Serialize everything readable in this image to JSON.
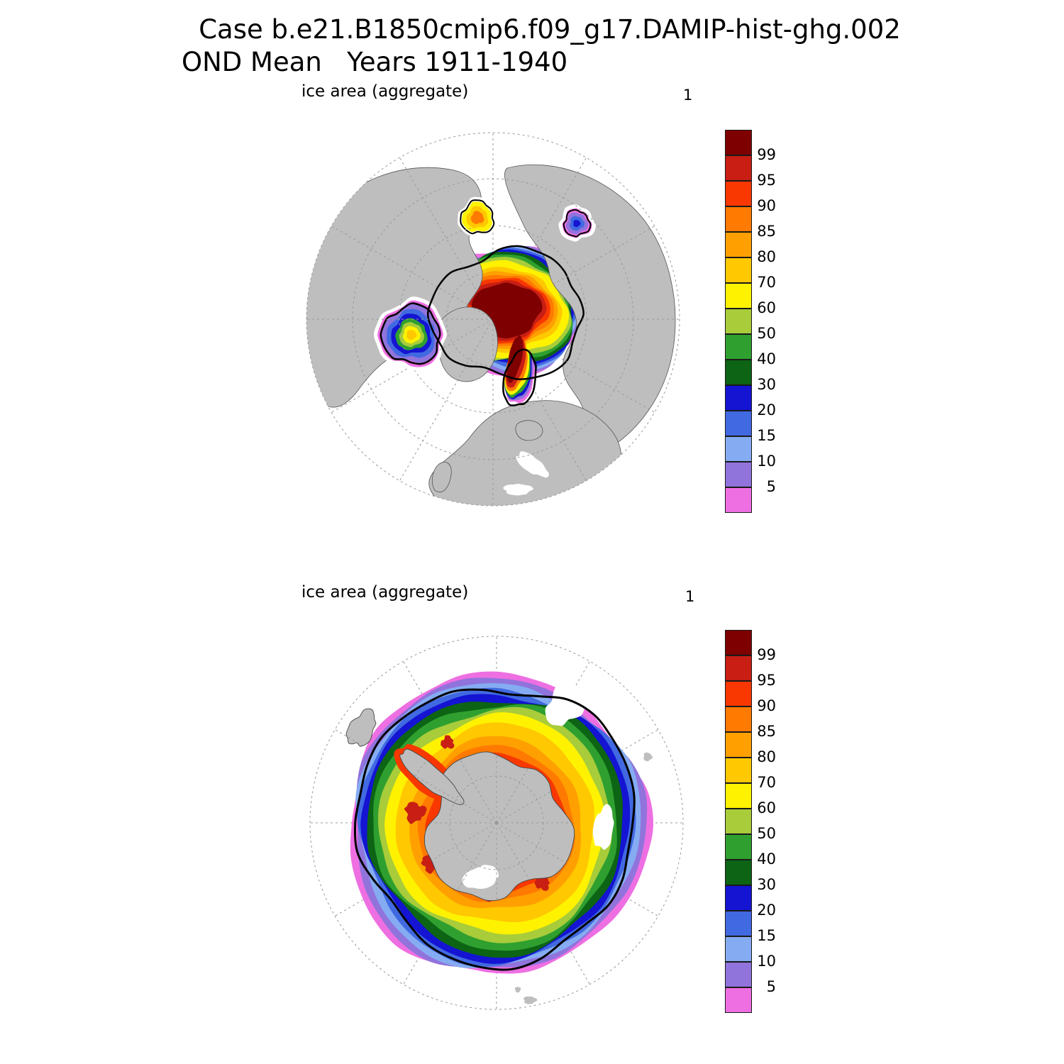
{
  "title": {
    "line1": "Case b.e21.B1850cmip6.f09_g17.DAMIP-hist-ghg.002",
    "line2": "OND Mean   Years 1911-1940"
  },
  "panels": {
    "north": {
      "title": "ice area  (aggregate)",
      "corner_label": "1"
    },
    "south": {
      "title": "ice area  (aggregate)",
      "corner_label": "1"
    }
  },
  "colorbar": {
    "tick_labels": [
      "99",
      "95",
      "90",
      "85",
      "80",
      "70",
      "60",
      "50",
      "40",
      "30",
      "20",
      "15",
      "10",
      "5"
    ],
    "colors_top_to_bottom": [
      "#7E0000",
      "#C81E14",
      "#F83800",
      "#FF7A00",
      "#FFA000",
      "#FFC800",
      "#FFF200",
      "#A8CC3A",
      "#2FA02F",
      "#0C6414",
      "#1414D2",
      "#4169E1",
      "#85ACF2",
      "#9173DC",
      "#EE6FE2"
    ]
  },
  "colors": {
    "land": "#BEBEBE",
    "ocean": "#FFFFFF",
    "ice_edge_contour": "#000000",
    "graticule": "#999999"
  },
  "chart_data": [
    {
      "type": "heatmap",
      "title": "ice area (aggregate)",
      "panel": "Northern Hemisphere, polar stereographic projection",
      "variable": "sea ice area fraction (%)",
      "contour_levels": [
        5,
        10,
        15,
        20,
        30,
        40,
        50,
        60,
        70,
        80,
        85,
        90,
        95,
        99
      ],
      "legend_position": "right",
      "grid": "dashed lat/lon graticule, 30-degree meridians",
      "features": [
        "ice area greater than 99% over the central Arctic Ocean",
        "concentration decreases outward through 95-60% bands toward the Siberian and Alaskan coasts",
        "tongue of high-concentration ice extends south along the east Greenland coast",
        "patch of 20-70% ice in the Hudson Bay region",
        "small 5-30% patches along the Bering/Chukchi coasts",
        "thick black contour marks the ice edge"
      ]
    },
    {
      "type": "heatmap",
      "title": "ice area (aggregate)",
      "panel": "Southern Hemisphere, polar stereographic projection",
      "variable": "sea ice area fraction (%)",
      "contour_levels": [
        5,
        10,
        15,
        20,
        30,
        40,
        50,
        60,
        70,
        80,
        85,
        90,
        95,
        99
      ],
      "legend_position": "right",
      "grid": "dashed lat/lon graticule, 30-degree meridians",
      "features": [
        "continuous ring of sea ice surrounding Antarctica",
        "85-95% concentration near the coast with patches above 95%",
        "broad 60-80% (yellow-orange) band through the middle of the pack",
        "narrow 5-50% green/blue/purple bands at the northern ice edge with a magenta 5% fringe",
        "thick black contour marks the ice edge around the pack"
      ]
    }
  ]
}
